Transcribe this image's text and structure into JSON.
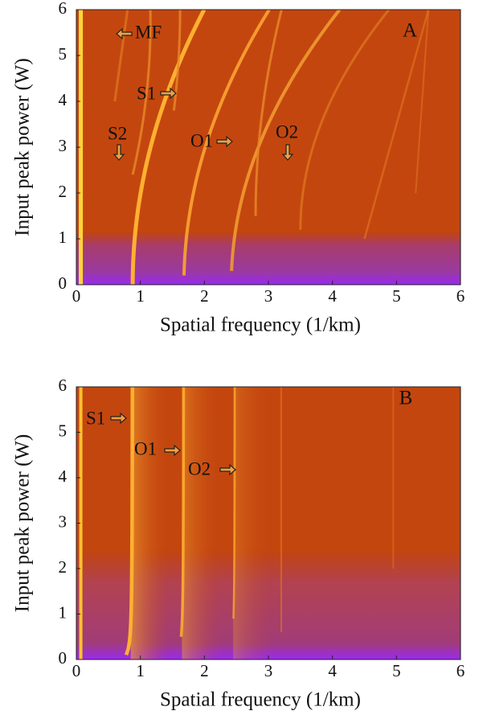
{
  "chart_data": [
    {
      "type": "heatmap",
      "panel": "A",
      "xlabel": "Spatial frequency (1/km)",
      "ylabel": "Input peak power (W)",
      "xlim": [
        0,
        6
      ],
      "ylim": [
        0,
        6
      ],
      "xticks": [
        0,
        1,
        2,
        3,
        4,
        5,
        6
      ],
      "yticks": [
        0,
        1,
        2,
        3,
        4,
        5,
        6
      ],
      "annotations": [
        "MF",
        "S1",
        "S2",
        "O1",
        "O2"
      ]
    },
    {
      "type": "heatmap",
      "panel": "B",
      "xlabel": "Spatial frequency (1/km)",
      "ylabel": "Input peak power (W)",
      "xlim": [
        0,
        6
      ],
      "ylim": [
        0,
        6
      ],
      "xticks": [
        0,
        1,
        2,
        3,
        4,
        5,
        6
      ],
      "yticks": [
        0,
        1,
        2,
        3,
        4,
        5,
        6
      ],
      "annotations": [
        "S1",
        "O1",
        "O2"
      ]
    }
  ]
}
